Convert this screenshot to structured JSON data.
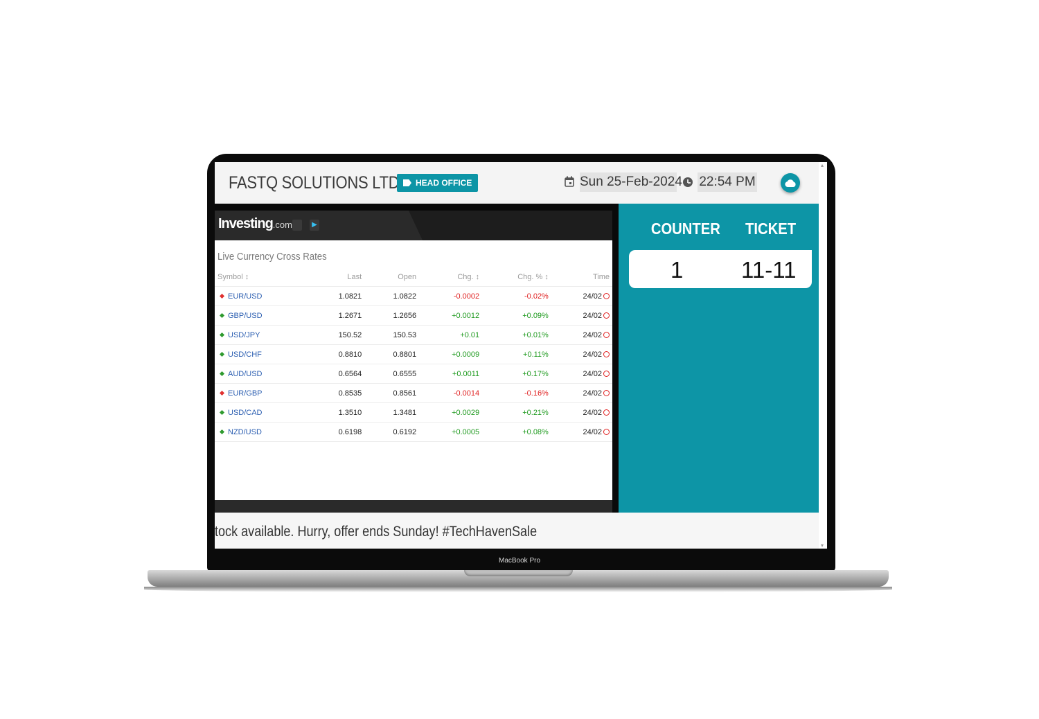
{
  "device": {
    "label": "MacBook Pro"
  },
  "header": {
    "company": "FASTQ SOLUTIONS LTD",
    "branch": "HEAD OFFICE",
    "date": "Sun 25-Feb-2024",
    "time": "22:54 PM",
    "icons": [
      "calendar-icon",
      "clock-icon",
      "cloud-icon"
    ]
  },
  "widget": {
    "brand": "Investing",
    "brand_suffix": ".com",
    "title": "Live Currency Cross Rates",
    "columns": [
      "Symbol ↕",
      "Last",
      "Open",
      "Chg. ↕",
      "Chg. % ↕",
      "Time"
    ],
    "rows": [
      {
        "symbol": "EUR/USD",
        "last": "1.0821",
        "open": "1.0822",
        "chg": "-0.0002",
        "chg_pct": "-0.02%",
        "time": "24/02",
        "dir": "down"
      },
      {
        "symbol": "GBP/USD",
        "last": "1.2671",
        "open": "1.2656",
        "chg": "+0.0012",
        "chg_pct": "+0.09%",
        "time": "24/02",
        "dir": "up"
      },
      {
        "symbol": "USD/JPY",
        "last": "150.52",
        "open": "150.53",
        "chg": "+0.01",
        "chg_pct": "+0.01%",
        "time": "24/02",
        "dir": "up"
      },
      {
        "symbol": "USD/CHF",
        "last": "0.8810",
        "open": "0.8801",
        "chg": "+0.0009",
        "chg_pct": "+0.11%",
        "time": "24/02",
        "dir": "up"
      },
      {
        "symbol": "AUD/USD",
        "last": "0.6564",
        "open": "0.6555",
        "chg": "+0.0011",
        "chg_pct": "+0.17%",
        "time": "24/02",
        "dir": "up"
      },
      {
        "symbol": "EUR/GBP",
        "last": "0.8535",
        "open": "0.8561",
        "chg": "-0.0014",
        "chg_pct": "-0.16%",
        "time": "24/02",
        "dir": "down"
      },
      {
        "symbol": "USD/CAD",
        "last": "1.3510",
        "open": "1.3481",
        "chg": "+0.0029",
        "chg_pct": "+0.21%",
        "time": "24/02",
        "dir": "up"
      },
      {
        "symbol": "NZD/USD",
        "last": "0.6198",
        "open": "0.6192",
        "chg": "+0.0005",
        "chg_pct": "+0.08%",
        "time": "24/02",
        "dir": "up"
      }
    ]
  },
  "panel": {
    "counter_label": "COUNTER",
    "ticket_label": "TICKET",
    "counter": "1",
    "ticket": "11-11"
  },
  "ticker": {
    "text": "tock available. Hurry, offer ends Sunday! #TechHavenSale"
  },
  "colors": {
    "accent": "#0d95a6",
    "up": "#1f9a1f",
    "down": "#e02020",
    "link": "#2a5db0"
  }
}
